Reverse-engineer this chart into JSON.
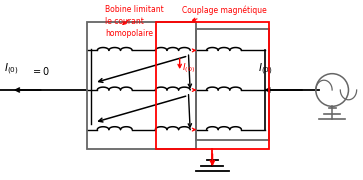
{
  "bg_color": "#ffffff",
  "text_color_red": "#ff0000",
  "text_color_black": "#000000",
  "coil_color": "#000000",
  "line_color": "#000000",
  "gray_color": "#666666",
  "label_bobine": "Bobine limitant\nle courant\nhomopolaire",
  "label_couplage": "Couplage magnétique",
  "figw": 3.63,
  "figh": 1.8,
  "dpi": 100
}
